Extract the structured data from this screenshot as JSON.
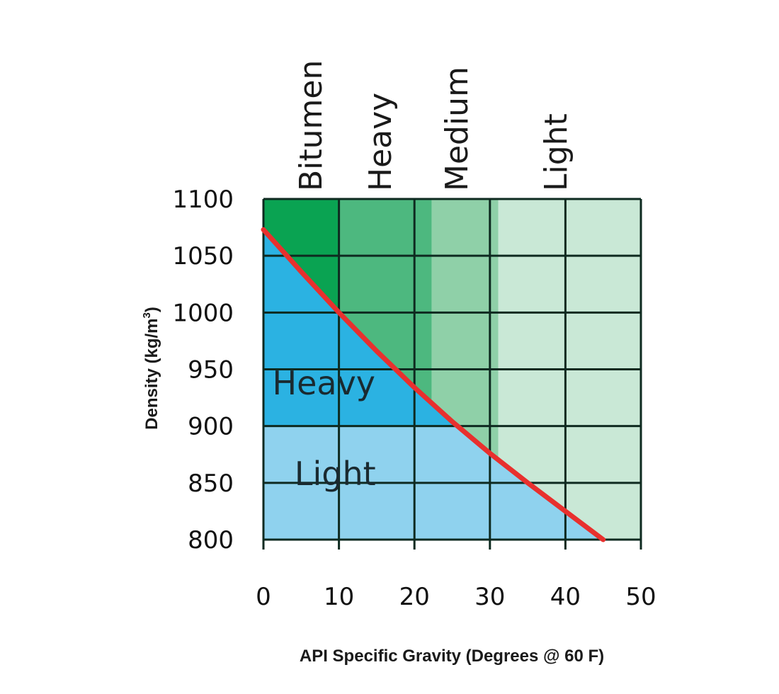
{
  "chart_data": {
    "type": "area",
    "title": "",
    "xlabel": "API Specific Gravity (Degrees @ 60 F)",
    "ylabel": "Density (kg/m",
    "ylabel_superscript": "3",
    "ylabel_suffix": ")",
    "xlim": [
      0,
      50
    ],
    "ylim": [
      800,
      1100
    ],
    "x_ticks": [
      0,
      10,
      20,
      30,
      40,
      50
    ],
    "y_ticks": [
      800,
      850,
      900,
      950,
      1000,
      1050,
      1100
    ],
    "x_tick_labels": [
      "0",
      "10",
      "20",
      "30",
      "40",
      "50"
    ],
    "y_tick_labels": [
      "800",
      "850",
      "900",
      "950",
      "1000",
      "1050",
      "1100"
    ],
    "grid": true,
    "bands": [
      {
        "label": "Bitumen",
        "x_range": [
          0,
          10
        ],
        "color": "#0aa352"
      },
      {
        "label": "Heavy",
        "x_range": [
          10,
          22.3
        ],
        "color": "#4db87f"
      },
      {
        "label": "Medium",
        "x_range": [
          22.3,
          31.1
        ],
        "color": "#8fd0a8"
      },
      {
        "label": "Light",
        "x_range": [
          31.1,
          50
        ],
        "color": "#c9e8d6"
      }
    ],
    "regions": [
      {
        "label": "Heavy",
        "y_range": [
          900,
          1100
        ],
        "color": "#2bb2e2",
        "label_at": [
          8,
          928
        ]
      },
      {
        "label": "Light",
        "y_range": [
          800,
          900
        ],
        "color": "#8fd2ee",
        "label_at": [
          9.5,
          848
        ]
      }
    ],
    "curve": {
      "color": "#e8302e",
      "x": [
        0,
        5,
        10,
        15,
        20,
        25,
        30,
        35,
        40,
        45
      ],
      "y": [
        1073,
        1036,
        1000,
        966,
        934,
        904,
        876,
        850,
        825,
        800
      ]
    }
  }
}
